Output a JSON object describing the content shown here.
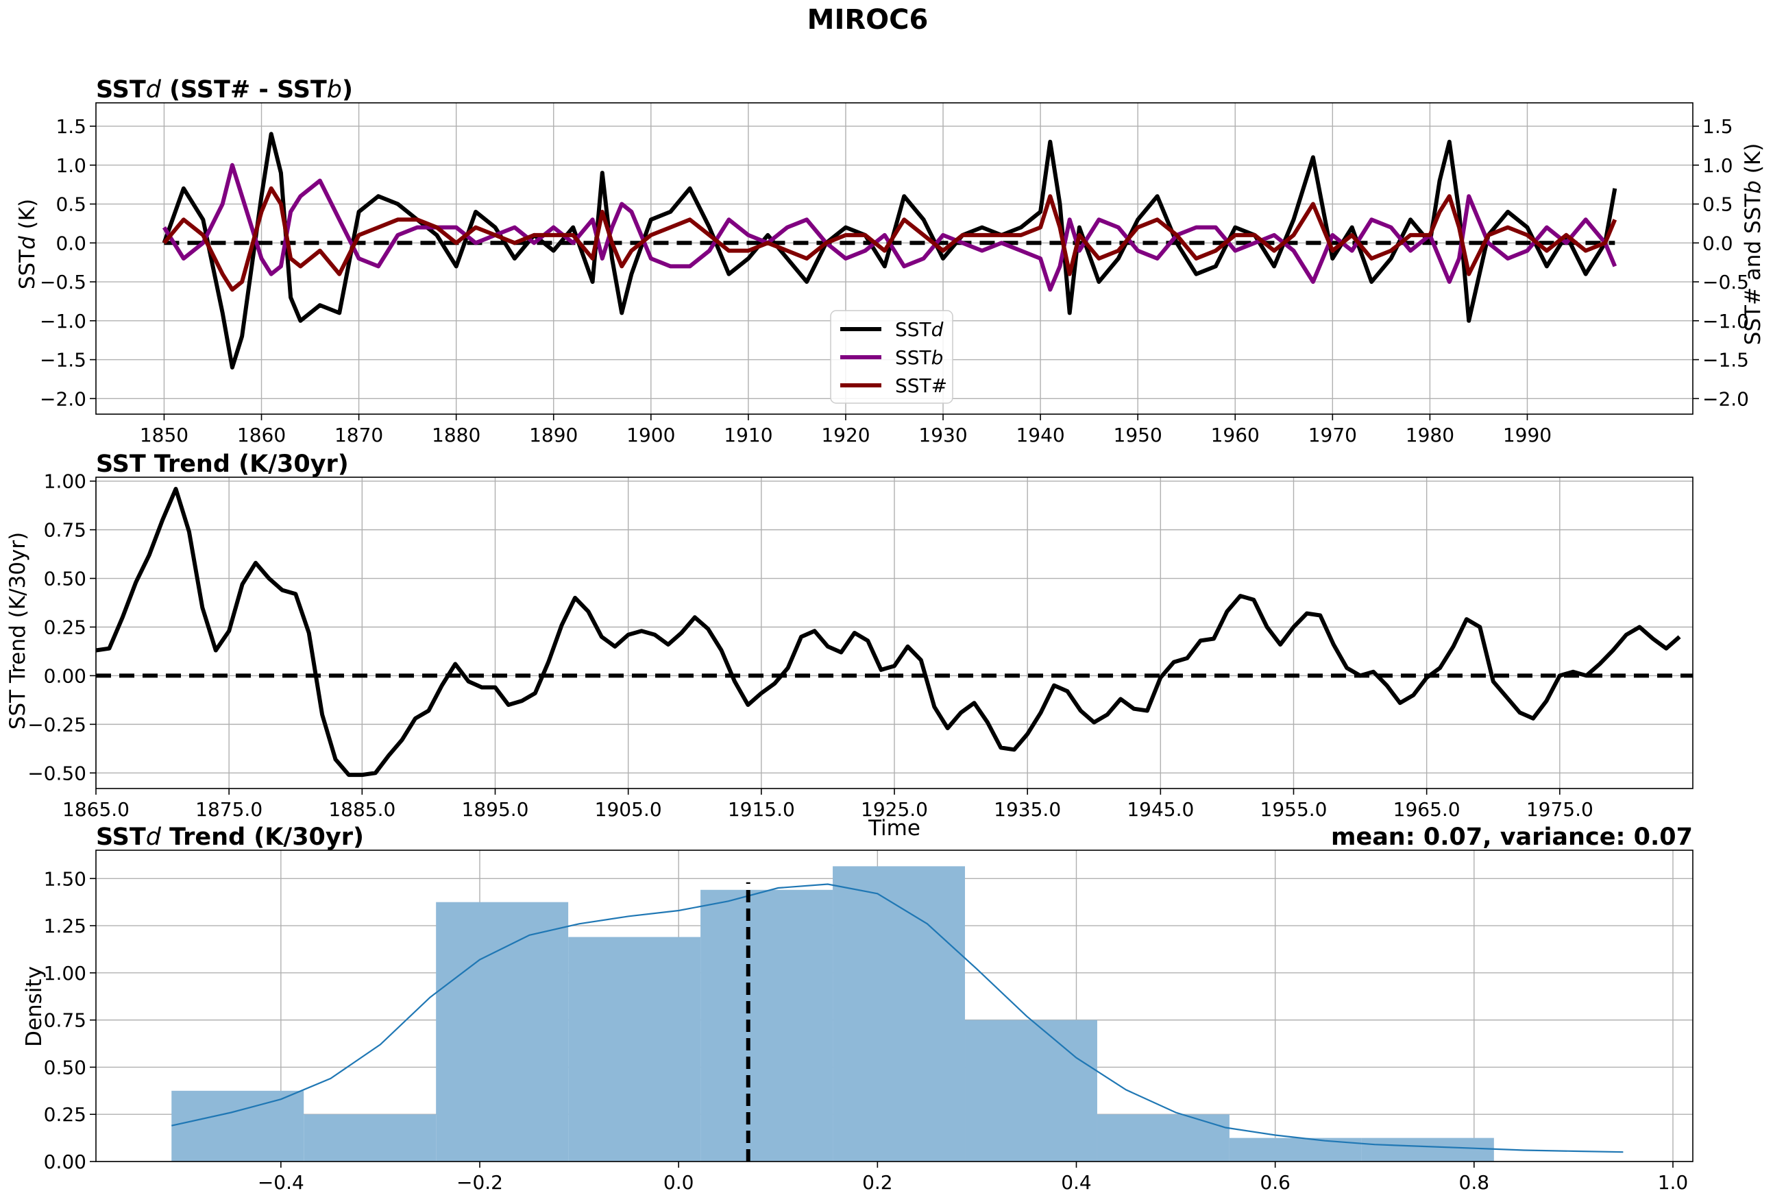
{
  "figure": {
    "title": "MIROC6"
  },
  "chart_data": [
    {
      "type": "line",
      "title_parts": [
        "SST",
        "d",
        " (SST# - SST",
        "b",
        ")"
      ],
      "ylabel_parts": [
        "SST",
        "d",
        " (K)"
      ],
      "ylabel_right_parts": [
        "SST# and SST",
        "b",
        " (K)"
      ],
      "xlim": [
        1843,
        2007
      ],
      "ylim": [
        -2.2,
        1.8
      ],
      "x_ticks": [
        1850,
        1860,
        1870,
        1880,
        1890,
        1900,
        1910,
        1920,
        1930,
        1940,
        1950,
        1960,
        1970,
        1980,
        1990
      ],
      "x_tick_labels": [
        "1850",
        "1860",
        "1870",
        "1880",
        "1890",
        "1900",
        "1910",
        "1920",
        "1930",
        "1940",
        "1950",
        "1960",
        "1970",
        "1980",
        "1990"
      ],
      "y_ticks": [
        1.5,
        1.0,
        0.5,
        0.0,
        -0.5,
        -1.0,
        -1.5,
        -2.0
      ],
      "y_tick_labels": [
        "1.5",
        "1.0",
        "0.5",
        "0.0",
        "−0.5",
        "−1.0",
        "−1.5",
        "−2.0"
      ],
      "grid": true,
      "legend_position": "bottom-center",
      "reference_line": 0,
      "x": [
        1850,
        1852,
        1854,
        1856,
        1857,
        1858,
        1860,
        1861,
        1862,
        1863,
        1864,
        1866,
        1868,
        1870,
        1872,
        1874,
        1876,
        1878,
        1880,
        1882,
        1884,
        1886,
        1888,
        1890,
        1892,
        1894,
        1895,
        1896,
        1897,
        1898,
        1900,
        1902,
        1904,
        1906,
        1908,
        1910,
        1912,
        1914,
        1916,
        1918,
        1920,
        1922,
        1924,
        1926,
        1928,
        1930,
        1932,
        1934,
        1936,
        1938,
        1940,
        1941,
        1942,
        1943,
        1944,
        1946,
        1948,
        1950,
        1952,
        1954,
        1956,
        1958,
        1960,
        1962,
        1964,
        1966,
        1968,
        1970,
        1972,
        1974,
        1976,
        1978,
        1980,
        1981,
        1982,
        1983,
        1984,
        1986,
        1988,
        1990,
        1992,
        1994,
        1996,
        1998,
        1999
      ],
      "series": [
        {
          "name_parts": [
            "SST",
            "d"
          ],
          "color": "#000000",
          "values": [
            0.0,
            0.7,
            0.3,
            -0.9,
            -1.6,
            -1.2,
            0.6,
            1.4,
            0.9,
            -0.7,
            -1.0,
            -0.8,
            -0.9,
            0.4,
            0.6,
            0.5,
            0.3,
            0.1,
            -0.3,
            0.4,
            0.2,
            -0.2,
            0.1,
            -0.1,
            0.2,
            -0.5,
            0.9,
            -0.2,
            -0.9,
            -0.4,
            0.3,
            0.4,
            0.7,
            0.2,
            -0.4,
            -0.2,
            0.1,
            -0.2,
            -0.5,
            0.0,
            0.2,
            0.1,
            -0.3,
            0.6,
            0.3,
            -0.2,
            0.1,
            0.2,
            0.1,
            0.2,
            0.4,
            1.3,
            0.5,
            -0.9,
            0.2,
            -0.5,
            -0.2,
            0.3,
            0.6,
            0.0,
            -0.4,
            -0.3,
            0.2,
            0.1,
            -0.3,
            0.3,
            1.1,
            -0.2,
            0.2,
            -0.5,
            -0.2,
            0.3,
            0.0,
            0.8,
            1.3,
            0.4,
            -1.0,
            0.1,
            0.4,
            0.2,
            -0.3,
            0.1,
            -0.4,
            0.0,
            0.7
          ]
        },
        {
          "name_parts": [
            "SST",
            "b"
          ],
          "color": "#800080",
          "values": [
            0.2,
            -0.2,
            0.0,
            0.5,
            1.0,
            0.6,
            -0.2,
            -0.4,
            -0.3,
            0.4,
            0.6,
            0.8,
            0.3,
            -0.2,
            -0.3,
            0.1,
            0.2,
            0.2,
            0.2,
            0.0,
            0.1,
            0.2,
            0.0,
            0.2,
            0.0,
            0.3,
            -0.2,
            0.2,
            0.5,
            0.4,
            -0.2,
            -0.3,
            -0.3,
            -0.1,
            0.3,
            0.1,
            0.0,
            0.2,
            0.3,
            0.0,
            -0.2,
            -0.1,
            0.1,
            -0.3,
            -0.2,
            0.1,
            0.0,
            -0.1,
            0.0,
            -0.1,
            -0.2,
            -0.6,
            -0.3,
            0.3,
            -0.1,
            0.3,
            0.2,
            -0.1,
            -0.2,
            0.1,
            0.2,
            0.2,
            -0.1,
            0.0,
            0.1,
            -0.1,
            -0.5,
            0.1,
            -0.1,
            0.3,
            0.2,
            -0.1,
            0.1,
            -0.2,
            -0.5,
            -0.2,
            0.6,
            0.0,
            -0.2,
            -0.1,
            0.2,
            0.0,
            0.3,
            0.0,
            -0.3
          ]
        },
        {
          "name": "SST#",
          "color": "#800000",
          "values": [
            0.0,
            0.3,
            0.1,
            -0.4,
            -0.6,
            -0.5,
            0.4,
            0.7,
            0.5,
            -0.2,
            -0.3,
            -0.1,
            -0.4,
            0.1,
            0.2,
            0.3,
            0.3,
            0.2,
            0.0,
            0.2,
            0.1,
            0.0,
            0.1,
            0.1,
            0.1,
            -0.2,
            0.4,
            0.0,
            -0.3,
            -0.1,
            0.1,
            0.2,
            0.3,
            0.1,
            -0.1,
            -0.1,
            0.0,
            -0.1,
            -0.2,
            0.0,
            0.1,
            0.1,
            -0.1,
            0.3,
            0.1,
            -0.1,
            0.1,
            0.1,
            0.1,
            0.1,
            0.2,
            0.6,
            0.2,
            -0.4,
            0.1,
            -0.2,
            -0.1,
            0.2,
            0.3,
            0.1,
            -0.2,
            -0.1,
            0.1,
            0.1,
            -0.1,
            0.1,
            0.5,
            -0.1,
            0.1,
            -0.2,
            -0.1,
            0.1,
            0.1,
            0.4,
            0.6,
            0.2,
            -0.4,
            0.1,
            0.2,
            0.1,
            -0.1,
            0.1,
            -0.1,
            0.0,
            0.3
          ]
        }
      ]
    },
    {
      "type": "line",
      "title": "SST Trend (K/30yr)",
      "xlabel": "Time",
      "ylabel": "SST Trend (K/30yr)",
      "xlim": [
        1865,
        1985
      ],
      "ylim": [
        -0.58,
        1.02
      ],
      "x_ticks": [
        1865,
        1875,
        1885,
        1895,
        1905,
        1915,
        1925,
        1935,
        1945,
        1955,
        1965,
        1975
      ],
      "x_tick_labels": [
        "1865.0",
        "1875.0",
        "1885.0",
        "1895.0",
        "1905.0",
        "1915.0",
        "1925.0",
        "1935.0",
        "1945.0",
        "1955.0",
        "1965.0",
        "1975.0"
      ],
      "y_ticks": [
        1.0,
        0.75,
        0.5,
        0.25,
        0.0,
        -0.25,
        -0.5
      ],
      "y_tick_labels": [
        "1.00",
        "0.75",
        "0.50",
        "0.25",
        "0.00",
        "−0.25",
        "−0.50"
      ],
      "grid": true,
      "reference_line": 0,
      "x": [
        1865,
        1866,
        1867,
        1868,
        1869,
        1870,
        1871,
        1872,
        1873,
        1874,
        1875,
        1876,
        1877,
        1878,
        1879,
        1880,
        1881,
        1882,
        1883,
        1884,
        1885,
        1886,
        1887,
        1888,
        1889,
        1890,
        1891,
        1892,
        1893,
        1894,
        1895,
        1896,
        1897,
        1898,
        1899,
        1900,
        1901,
        1902,
        1903,
        1904,
        1905,
        1906,
        1907,
        1908,
        1909,
        1910,
        1911,
        1912,
        1913,
        1914,
        1915,
        1916,
        1917,
        1918,
        1919,
        1920,
        1921,
        1922,
        1923,
        1924,
        1925,
        1926,
        1927,
        1928,
        1929,
        1930,
        1931,
        1932,
        1933,
        1934,
        1935,
        1936,
        1937,
        1938,
        1939,
        1940,
        1941,
        1942,
        1943,
        1944,
        1945,
        1946,
        1947,
        1948,
        1949,
        1950,
        1951,
        1952,
        1953,
        1954,
        1955,
        1956,
        1957,
        1958,
        1959,
        1960,
        1961,
        1962,
        1963,
        1964,
        1965,
        1966,
        1967,
        1968,
        1969,
        1970,
        1971,
        1972,
        1973,
        1974,
        1975,
        1976,
        1977,
        1978,
        1979,
        1980,
        1981,
        1982,
        1983,
        1984
      ],
      "series": [
        {
          "color": "#000000",
          "values": [
            0.13,
            0.14,
            0.3,
            0.48,
            0.62,
            0.8,
            0.96,
            0.74,
            0.35,
            0.13,
            0.23,
            0.47,
            0.58,
            0.5,
            0.44,
            0.42,
            0.22,
            -0.2,
            -0.43,
            -0.51,
            -0.51,
            -0.5,
            -0.41,
            -0.33,
            -0.22,
            -0.18,
            -0.05,
            0.06,
            -0.03,
            -0.06,
            -0.06,
            -0.15,
            -0.13,
            -0.09,
            0.07,
            0.26,
            0.4,
            0.33,
            0.2,
            0.15,
            0.21,
            0.23,
            0.21,
            0.16,
            0.22,
            0.3,
            0.24,
            0.13,
            -0.03,
            -0.15,
            -0.09,
            -0.04,
            0.04,
            0.2,
            0.23,
            0.15,
            0.12,
            0.22,
            0.18,
            0.03,
            0.05,
            0.15,
            0.08,
            -0.16,
            -0.27,
            -0.19,
            -0.14,
            -0.24,
            -0.37,
            -0.38,
            -0.3,
            -0.19,
            -0.05,
            -0.08,
            -0.18,
            -0.24,
            -0.2,
            -0.12,
            -0.17,
            -0.18,
            -0.01,
            0.07,
            0.09,
            0.18,
            0.19,
            0.33,
            0.41,
            0.39,
            0.25,
            0.16,
            0.25,
            0.32,
            0.31,
            0.16,
            0.04,
            0.0,
            0.02,
            -0.05,
            -0.14,
            -0.1,
            -0.01,
            0.04,
            0.15,
            0.29,
            0.25,
            -0.03,
            -0.11,
            -0.19,
            -0.22,
            -0.13,
            0.0,
            0.02,
            0.0,
            0.06,
            0.13,
            0.21,
            0.25,
            0.19,
            0.14,
            0.2
          ]
        }
      ]
    },
    {
      "type": "histogram",
      "title_parts": [
        "SST",
        "d",
        " Trend (K/30yr)"
      ],
      "right_title": "mean: 0.07, variance: 0.07",
      "ylabel": "Density",
      "xlim": [
        -0.586,
        1.02
      ],
      "ylim": [
        0,
        1.65
      ],
      "x_ticks": [
        -0.4,
        -0.2,
        0.0,
        0.2,
        0.4,
        0.6,
        0.8,
        1.0
      ],
      "x_tick_labels": [
        "−0.4",
        "−0.2",
        "0.0",
        "0.2",
        "0.4",
        "0.6",
        "0.8",
        "1.0"
      ],
      "y_ticks": [
        1.5,
        1.25,
        1.0,
        0.75,
        0.5,
        0.25,
        0.0
      ],
      "y_tick_labels": [
        "1.50",
        "1.25",
        "1.00",
        "0.75",
        "0.50",
        "0.25",
        "0.00"
      ],
      "grid": true,
      "bar_color": "#8fb9d8",
      "kde_color": "#1f77b4",
      "mean_line_color": "#000000",
      "bin_edges": [
        -0.51,
        -0.377,
        -0.244,
        -0.111,
        0.022,
        0.155,
        0.288,
        0.421,
        0.554,
        0.687,
        0.82,
        0.953
      ],
      "density": [
        0.375,
        0.25,
        1.375,
        1.19,
        1.44,
        1.565,
        0.75,
        0.25,
        0.125,
        0.125,
        0.0
      ],
      "mean": 0.07,
      "kde_x": [
        -0.51,
        -0.45,
        -0.4,
        -0.35,
        -0.3,
        -0.25,
        -0.2,
        -0.15,
        -0.1,
        -0.05,
        0.0,
        0.05,
        0.1,
        0.15,
        0.2,
        0.25,
        0.3,
        0.35,
        0.4,
        0.45,
        0.5,
        0.55,
        0.6,
        0.65,
        0.7,
        0.75,
        0.8,
        0.85,
        0.9,
        0.95
      ],
      "kde_y": [
        0.19,
        0.26,
        0.33,
        0.44,
        0.62,
        0.87,
        1.07,
        1.2,
        1.26,
        1.3,
        1.33,
        1.38,
        1.45,
        1.47,
        1.42,
        1.26,
        1.02,
        0.77,
        0.55,
        0.38,
        0.26,
        0.18,
        0.14,
        0.11,
        0.09,
        0.08,
        0.07,
        0.06,
        0.055,
        0.05
      ]
    }
  ]
}
